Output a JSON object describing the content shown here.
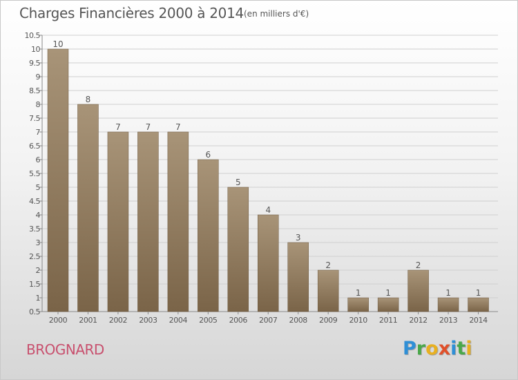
{
  "colors": {
    "bar_light": "#a89478",
    "bar_dark": "#7a6448",
    "axis": "#888888",
    "grid": "#cfcfcf",
    "text": "#555555",
    "commune": "#c8506e"
  },
  "header": {
    "title": "Charges Financières 2000 à 2014",
    "subtitle": "(en milliers d'€)"
  },
  "footer": {
    "commune": "BROGNARD",
    "logo": [
      {
        "char": "P",
        "color": "#2f8fd6"
      },
      {
        "char": "r",
        "color": "#4aa84a"
      },
      {
        "char": "o",
        "color": "#e8b020"
      },
      {
        "char": "x",
        "color": "#e0502a"
      },
      {
        "char": "i",
        "color": "#2f8fd6"
      },
      {
        "char": "t",
        "color": "#4aa84a"
      },
      {
        "char": "i",
        "color": "#e8b020"
      }
    ]
  },
  "chart_data": {
    "type": "bar",
    "categories": [
      "2000",
      "2001",
      "2002",
      "2003",
      "2004",
      "2005",
      "2006",
      "2007",
      "2008",
      "2009",
      "2010",
      "2011",
      "2012",
      "2013",
      "2014"
    ],
    "values": [
      10,
      8,
      7,
      7,
      7,
      6,
      5,
      4,
      3,
      2,
      1,
      1,
      2,
      1,
      1
    ],
    "value_labels": [
      "10",
      "8",
      "7",
      "7",
      "7",
      "6",
      "5",
      "4",
      "3",
      "2",
      "1",
      "1",
      "2",
      "1",
      "1"
    ],
    "title": "Charges Financières 2000 à 2014",
    "subtitle": "(en milliers d'€)",
    "xlabel": "",
    "ylabel": "",
    "ylim": [
      0.5,
      10.5
    ],
    "yticks": [
      0.5,
      1,
      1.5,
      2,
      2.5,
      3,
      3.5,
      4,
      4.5,
      5,
      5.5,
      6,
      6.5,
      7,
      7.5,
      8,
      8.5,
      9,
      9.5,
      10,
      10.5
    ],
    "ytick_labels": [
      "0.5",
      "1",
      "1.5",
      "2",
      "2.5",
      "3",
      "3.5",
      "4",
      "4.5",
      "5",
      "5.5",
      "6",
      "6.5",
      "7",
      "7.5",
      "8",
      "8.5",
      "9",
      "9.5",
      "10",
      "10.5"
    ],
    "grid": true,
    "legend": "none"
  }
}
